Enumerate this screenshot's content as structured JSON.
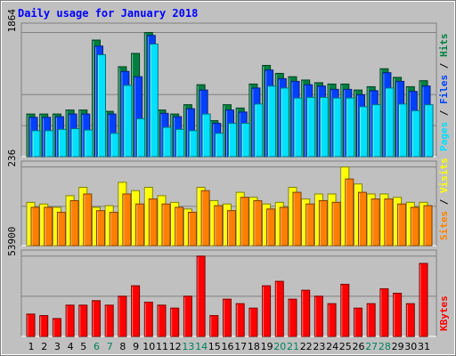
{
  "chart_data": {
    "type": "bar",
    "title": "Daily usage for January 2018",
    "days": [
      "1",
      "2",
      "3",
      "4",
      "5",
      "6",
      "7",
      "8",
      "9",
      "10",
      "11",
      "12",
      "13",
      "14",
      "15",
      "16",
      "17",
      "18",
      "19",
      "20",
      "21",
      "22",
      "23",
      "24",
      "25",
      "26",
      "27",
      "28",
      "29",
      "30",
      "31"
    ],
    "weekend_days": [
      "6",
      "7",
      "13",
      "14",
      "20",
      "21",
      "27",
      "28"
    ],
    "colors": {
      "hits": "#008040",
      "files": "#0040ff",
      "pages": "#00e0ff",
      "visits": "#ffff00",
      "sites": "#ff8000",
      "kbytes": "#ff0000",
      "weekday_label": "#000000",
      "weekend_label": "#00805c",
      "title": "#0000ff"
    },
    "panels": [
      {
        "name": "hits-files-pages",
        "ymax": 1864,
        "ymax_label": "1864",
        "legend": [
          "Pages",
          "/",
          "Files",
          "/",
          "Hits"
        ],
        "series": [
          {
            "name": "Hits",
            "values": [
              640,
              640,
              640,
              700,
              700,
              1750,
              680,
              1350,
              1550,
              1864,
              700,
              640,
              780,
              1080,
              540,
              780,
              730,
              1090,
              1370,
              1250,
              1200,
              1150,
              1110,
              1090,
              1090,
              1000,
              1050,
              1320,
              1190,
              1050,
              1140
            ]
          },
          {
            "name": "Files",
            "values": [
              590,
              590,
              600,
              640,
              640,
              1660,
              640,
              1280,
              1200,
              1820,
              650,
              600,
              720,
              1000,
              500,
              700,
              670,
              1030,
              1300,
              1170,
              1130,
              1080,
              1060,
              1010,
              1010,
              930,
              990,
              1260,
              1130,
              980,
              1060
            ]
          },
          {
            "name": "Pages",
            "values": [
              390,
              390,
              410,
              420,
              400,
              1530,
              350,
              1070,
              570,
              1690,
              440,
              410,
              390,
              640,
              350,
              500,
              500,
              790,
              1060,
              1030,
              880,
              890,
              890,
              880,
              880,
              750,
              780,
              1030,
              790,
              690,
              780
            ]
          }
        ]
      },
      {
        "name": "visits-sites",
        "ymax": 236,
        "ymax_label": "236",
        "legend": [
          "Sites",
          "/",
          "Visits"
        ],
        "series": [
          {
            "name": "Visits",
            "values": [
              130,
              125,
              115,
              150,
              175,
              115,
              120,
              190,
              165,
              175,
              150,
              130,
              110,
              175,
              135,
              125,
              160,
              145,
              125,
              130,
              175,
              140,
              155,
              155,
              236,
              185,
              155,
              155,
              145,
              130,
              130
            ]
          },
          {
            "name": "Sites",
            "values": [
              115,
              115,
              100,
              135,
              155,
              105,
              100,
              155,
              125,
              140,
              125,
              115,
              100,
              165,
              120,
              105,
              145,
              135,
              110,
              115,
              160,
              125,
              135,
              130,
              200,
              160,
              140,
              140,
              125,
              115,
              120
            ]
          }
        ]
      },
      {
        "name": "kbytes",
        "ymax": 53900,
        "ymax_label": "53900",
        "legend": [
          "KBytes"
        ],
        "series": [
          {
            "name": "KBytes",
            "values": [
              15000,
              14000,
              12000,
              21000,
              21000,
              24000,
              21000,
              27000,
              34000,
              23000,
              21000,
              19000,
              27000,
              53900,
              14000,
              25000,
              22000,
              19000,
              34000,
              37000,
              25000,
              31000,
              27000,
              22000,
              35000,
              19000,
              22000,
              32000,
              29000,
              22000,
              49000
            ]
          }
        ]
      }
    ]
  }
}
